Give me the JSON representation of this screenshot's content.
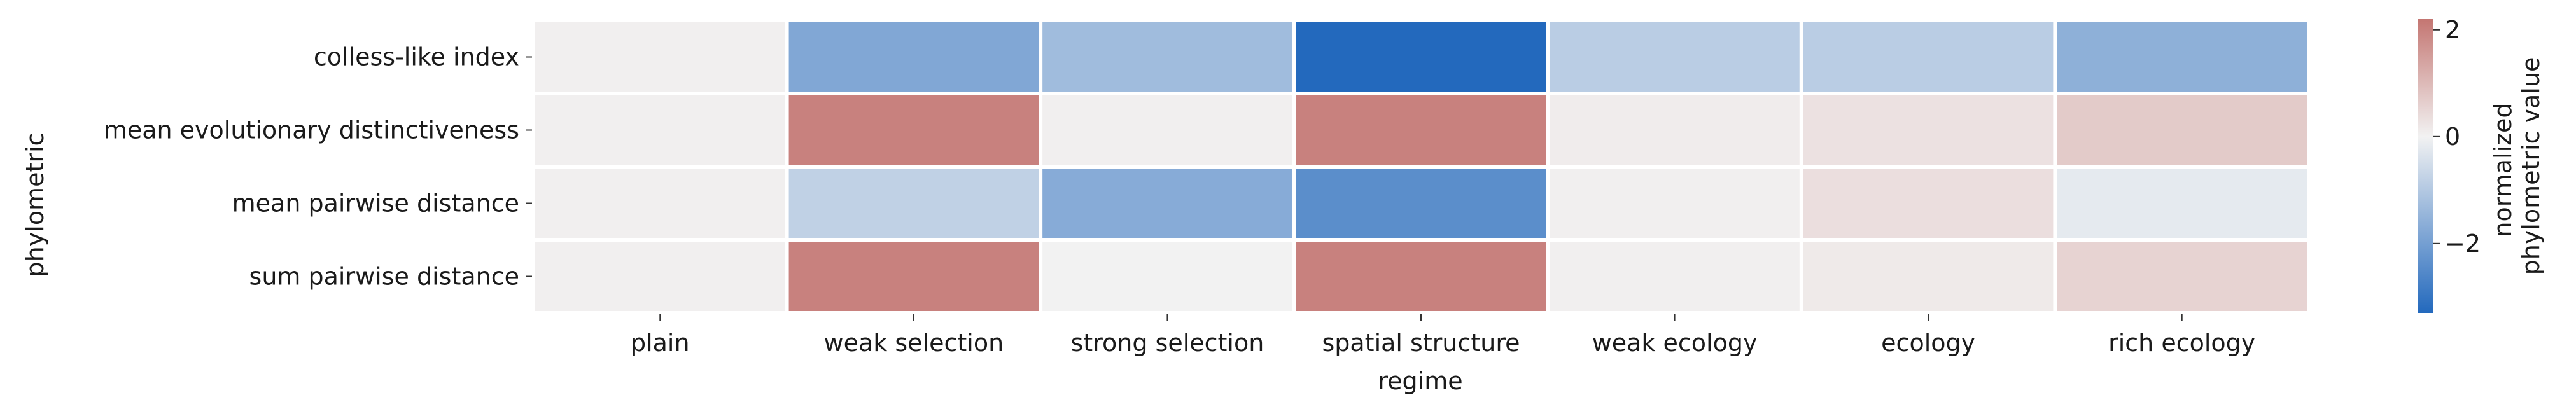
{
  "chart_data": {
    "type": "heatmap",
    "xlabel": "regime",
    "ylabel": "phylometric",
    "x_categories": [
      "plain",
      "weak selection",
      "strong selection",
      "spatial structure",
      "weak ecology",
      "ecology",
      "rich ecology"
    ],
    "y_categories": [
      "colless-like index",
      "mean evolutionary distinctiveness",
      "mean pairwise distance",
      "sum pairwise distance"
    ],
    "values": [
      [
        0.05,
        -1.8,
        -1.3,
        -3.3,
        -0.9,
        -0.9,
        -1.6
      ],
      [
        0.05,
        2.0,
        0.05,
        2.0,
        0.1,
        0.3,
        0.7
      ],
      [
        0.05,
        -0.8,
        -1.7,
        -2.4,
        0.05,
        0.35,
        -0.2
      ],
      [
        0.05,
        2.0,
        0.0,
        2.0,
        0.05,
        0.15,
        0.55
      ]
    ],
    "colorbar": {
      "label_lines": [
        "normalized",
        "phylometric value"
      ],
      "range": [
        -3.3,
        2.2
      ],
      "ticks": [
        2,
        0,
        -2
      ],
      "tick_labels": [
        "2",
        "0",
        "−2"
      ],
      "colors": {
        "low": "#2369bd",
        "mid": "#f2f2f2",
        "high": "#c47672"
      }
    },
    "grid": false,
    "cell_separator_color": "#ffffff"
  }
}
